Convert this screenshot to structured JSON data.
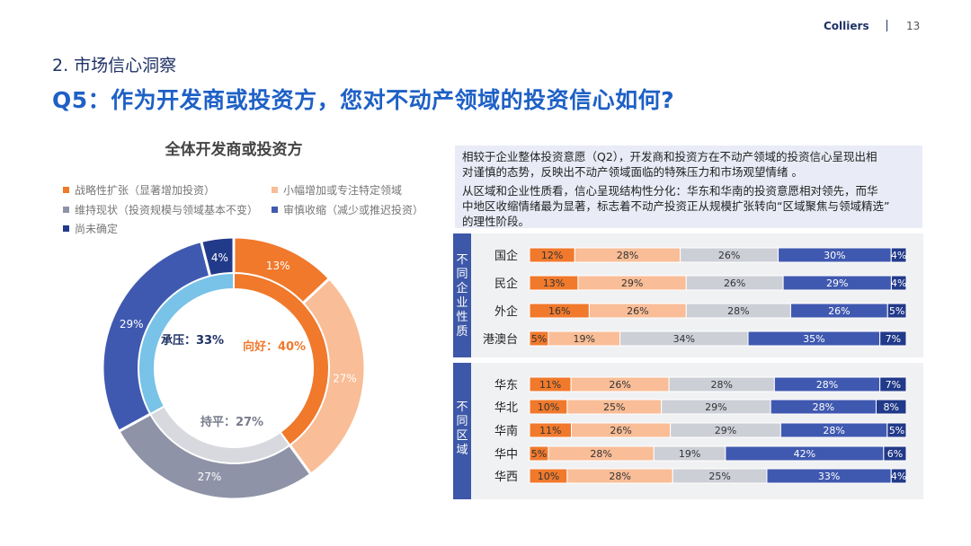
{
  "header": {
    "brand": "Colliers",
    "page": "13"
  },
  "section_title": "2. 市场信心洞察",
  "main_title": "Q5：作为开发商或投资方，您对不动产领域的投资信心如何?",
  "textbox": {
    "para1": [
      "相较于企业整体投资意愿（Q2），开发商和投资方在不动产领域的投资信心呈现出相",
      "对谨慎的态势，反映出不动产领域面临的特殊压力和市场观望情绪 。"
    ],
    "para2": [
      "从区域和企业性质看，信心呈现结构性分化：华东和华南的投资意愿相对领先，而华",
      "中地区收缩情绪最为显著，标志着不动产投资正从规模扩张转向“区域聚焦与领域精选”",
      "的理性阶段。"
    ]
  },
  "colors": {
    "strategic": "#f0792c",
    "small": "#f9bd97",
    "maintain": "#cdcfd7",
    "cautious": "#4059b0",
    "uncertain": "#223a8a",
    "inner_positive": "#f0792c",
    "inner_neutral": "#d7d9df",
    "inner_pressure": "#79c2e8",
    "outer_maintain": "#8e93a7",
    "title_blue": "#1e60c6",
    "band": "#3d58a8"
  },
  "chart_data": [
    {
      "type": "pie",
      "title": "全体开发商或投资方",
      "legend": [
        {
          "key": "strategic",
          "label": "战略性扩张（显著增加投资）"
        },
        {
          "key": "small",
          "label": "小幅增加或专注特定领域"
        },
        {
          "key": "maintain",
          "label": "维持现状（投资规模与领域基本不变）"
        },
        {
          "key": "cautious",
          "label": "审慎收缩（减少或推迟投资）"
        },
        {
          "key": "uncertain",
          "label": "尚未确定"
        }
      ],
      "outer": [
        {
          "key": "strategic",
          "value": 13,
          "label": "13%"
        },
        {
          "key": "small",
          "value": 27,
          "label": "27%"
        },
        {
          "key": "maintain",
          "value": 27,
          "label": "27%"
        },
        {
          "key": "cautious",
          "value": 29,
          "label": "29%"
        },
        {
          "key": "uncertain",
          "value": 4,
          "label": "4%"
        }
      ],
      "inner": [
        {
          "name": "向好",
          "value": 40,
          "label": "向好：40%"
        },
        {
          "name": "持平",
          "value": 27,
          "label": "持平：27%"
        },
        {
          "name": "承压",
          "value": 33,
          "label": "承压：33%"
        }
      ]
    },
    {
      "type": "bar",
      "stacked": true,
      "orientation": "horizontal",
      "series_keys": [
        "strategic",
        "small",
        "maintain",
        "cautious",
        "uncertain"
      ],
      "groups": [
        {
          "label": "不同企业性质",
          "categories": [
            "国企",
            "民企",
            "外企",
            "港澳台"
          ],
          "values": [
            [
              12,
              28,
              26,
              30,
              4
            ],
            [
              13,
              29,
              26,
              29,
              4
            ],
            [
              16,
              26,
              28,
              26,
              5
            ],
            [
              5,
              19,
              34,
              35,
              7
            ]
          ]
        },
        {
          "label": "不同区域",
          "categories": [
            "华东",
            "华北",
            "华南",
            "华中",
            "华西"
          ],
          "values": [
            [
              11,
              26,
              28,
              28,
              7
            ],
            [
              10,
              25,
              29,
              28,
              8
            ],
            [
              11,
              26,
              29,
              28,
              5
            ],
            [
              5,
              28,
              19,
              42,
              6
            ],
            [
              10,
              28,
              25,
              33,
              4
            ]
          ]
        }
      ]
    }
  ]
}
